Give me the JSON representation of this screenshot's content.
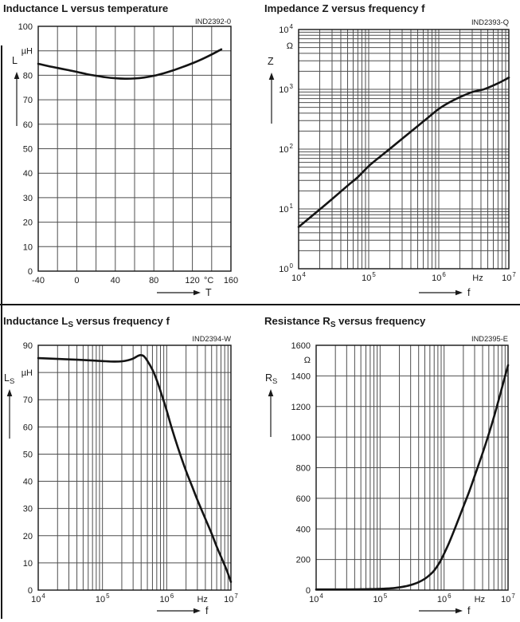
{
  "page": {
    "background": "#ffffff",
    "colors": {
      "text": "#1a1a1a",
      "title": "#10101a",
      "grid": "#4f4f4f",
      "plot_border": "#141414",
      "curve": "#141414"
    }
  },
  "chart_data": [
    {
      "key": "l-vs-t",
      "type": "line",
      "title_parts": [
        {
          "t": "Inductance L versus temperature"
        }
      ],
      "title_text": "Inductance L versus temperature",
      "code": "IND2392-0",
      "x_axis": {
        "scale": "linear",
        "min": -40,
        "max": 160,
        "grid_step": 20,
        "symbol": "T",
        "unit": "°C",
        "ticks": [
          {
            "v": -40,
            "label": "-40"
          },
          {
            "v": 0,
            "label": "0"
          },
          {
            "v": 40,
            "label": "40"
          },
          {
            "v": 80,
            "label": "80"
          },
          {
            "v": 120,
            "label": "120"
          },
          {
            "v": 137,
            "label": "°C"
          },
          {
            "v": 160,
            "label": "160"
          }
        ]
      },
      "y_axis": {
        "scale": "linear",
        "min": 0,
        "max": 100,
        "grid_step": 10,
        "quantity_parts": [
          {
            "t": "L"
          }
        ],
        "unit": "µH",
        "ticks": [
          {
            "v": 100,
            "label": "100"
          },
          {
            "v": 90,
            "label": "µH"
          },
          {
            "v": 80,
            "label": "80"
          },
          {
            "v": 70,
            "label": "70"
          },
          {
            "v": 60,
            "label": "60"
          },
          {
            "v": 50,
            "label": "50"
          },
          {
            "v": 40,
            "label": "40"
          },
          {
            "v": 30,
            "label": "30"
          },
          {
            "v": 20,
            "label": "20"
          },
          {
            "v": 10,
            "label": "10"
          },
          {
            "v": 0,
            "label": "0"
          }
        ]
      },
      "points": [
        [
          -40,
          84.7
        ],
        [
          -30,
          83.8
        ],
        [
          -20,
          83.0
        ],
        [
          -10,
          82.2
        ],
        [
          0,
          81.4
        ],
        [
          10,
          80.5
        ],
        [
          20,
          79.8
        ],
        [
          30,
          79.2
        ],
        [
          40,
          78.8
        ],
        [
          50,
          78.6
        ],
        [
          60,
          78.7
        ],
        [
          70,
          79.1
        ],
        [
          80,
          79.8
        ],
        [
          90,
          80.8
        ],
        [
          100,
          82.0
        ],
        [
          110,
          83.4
        ],
        [
          120,
          84.9
        ],
        [
          130,
          86.6
        ],
        [
          140,
          88.5
        ],
        [
          150,
          90.6
        ]
      ]
    },
    {
      "key": "z-vs-f",
      "type": "line",
      "title_parts": [
        {
          "t": "Impedance Z versus frequency f"
        }
      ],
      "title_text": "Impedance Z versus frequency f",
      "code": "IND2393-Q",
      "x_axis": {
        "scale": "log",
        "min": 10000,
        "max": 10000000,
        "symbol": "f",
        "unit": "Hz",
        "ticks": [
          {
            "v": 10000,
            "label": "10^4"
          },
          {
            "v": 100000,
            "label": "10^5"
          },
          {
            "v": 1000000,
            "label": "10^6"
          },
          {
            "v": 3600000,
            "label": "Hz"
          },
          {
            "v": 10000000,
            "label": "10^7"
          }
        ]
      },
      "y_axis": {
        "scale": "log",
        "min": 1,
        "max": 10000,
        "quantity_parts": [
          {
            "t": "Z"
          }
        ],
        "unit": "Ω",
        "ticks": [
          {
            "v": 10000,
            "label": "10^4"
          },
          {
            "v": 5400,
            "label": "Ω"
          },
          {
            "v": 1000,
            "label": "10^3"
          },
          {
            "v": 100,
            "label": "10^2"
          },
          {
            "v": 10,
            "label": "10^1"
          },
          {
            "v": 1,
            "label": "10^0"
          }
        ]
      },
      "points": [
        [
          10000,
          5
        ],
        [
          15000,
          7.4
        ],
        [
          20000,
          9.8
        ],
        [
          30000,
          14.6
        ],
        [
          50000,
          24.5
        ],
        [
          70000,
          34
        ],
        [
          100000,
          52
        ],
        [
          150000,
          77
        ],
        [
          200000,
          101
        ],
        [
          300000,
          149
        ],
        [
          500000,
          243
        ],
        [
          700000,
          335
        ],
        [
          1000000,
          470
        ],
        [
          1400000,
          600
        ],
        [
          2000000,
          740
        ],
        [
          3000000,
          900
        ],
        [
          4500000,
          1010
        ],
        [
          7000000,
          1260
        ],
        [
          10000000,
          1570
        ]
      ]
    },
    {
      "key": "ls-vs-f",
      "type": "line",
      "title_parts": [
        {
          "t": "Inductance L"
        },
        {
          "t": "S",
          "sub": true
        },
        {
          "t": " versus frequency f"
        }
      ],
      "title_text": "Inductance LS versus frequency f",
      "code": "IND2394-W",
      "x_axis": {
        "scale": "log",
        "min": 10000,
        "max": 10000000,
        "symbol": "f",
        "unit": "Hz",
        "ticks": [
          {
            "v": 10000,
            "label": "10^4"
          },
          {
            "v": 100000,
            "label": "10^5"
          },
          {
            "v": 1000000,
            "label": "10^6"
          },
          {
            "v": 3600000,
            "label": "Hz"
          },
          {
            "v": 10000000,
            "label": "10^7"
          }
        ]
      },
      "y_axis": {
        "scale": "linear",
        "min": 0,
        "max": 90,
        "grid_step": 10,
        "quantity_parts": [
          {
            "t": "L"
          },
          {
            "t": "S",
            "sub": true
          }
        ],
        "unit": "µH",
        "ticks": [
          {
            "v": 90,
            "label": "90"
          },
          {
            "v": 80,
            "label": "µH"
          },
          {
            "v": 70,
            "label": "70"
          },
          {
            "v": 60,
            "label": "60"
          },
          {
            "v": 50,
            "label": "50"
          },
          {
            "v": 40,
            "label": "40"
          },
          {
            "v": 30,
            "label": "30"
          },
          {
            "v": 20,
            "label": "20"
          },
          {
            "v": 10,
            "label": "10"
          },
          {
            "v": 0,
            "label": "0"
          }
        ]
      },
      "points": [
        [
          10000,
          85.3
        ],
        [
          20000,
          85.0
        ],
        [
          40000,
          84.7
        ],
        [
          70000,
          84.4
        ],
        [
          100000,
          84.2
        ],
        [
          150000,
          84.0
        ],
        [
          200000,
          84.1
        ],
        [
          250000,
          84.5
        ],
        [
          300000,
          85.1
        ],
        [
          350000,
          86.0
        ],
        [
          390000,
          86.4
        ],
        [
          440000,
          86.0
        ],
        [
          500000,
          84.3
        ],
        [
          600000,
          81.0
        ],
        [
          700000,
          77.2
        ],
        [
          850000,
          71.3
        ],
        [
          1000000,
          66.0
        ],
        [
          1200000,
          59.5
        ],
        [
          1500000,
          52.3
        ],
        [
          2000000,
          43.8
        ],
        [
          2500000,
          38.0
        ],
        [
          3000000,
          33.2
        ],
        [
          4000000,
          26.2
        ],
        [
          5000000,
          20.8
        ],
        [
          6000000,
          16.0
        ],
        [
          7000000,
          12.3
        ],
        [
          8500000,
          7.6
        ],
        [
          10000000,
          3.0
        ]
      ]
    },
    {
      "key": "rs-vs-f",
      "type": "line",
      "title_parts": [
        {
          "t": "Resistance R"
        },
        {
          "t": "S",
          "sub": true
        },
        {
          "t": " versus frequency"
        }
      ],
      "title_text": "Resistance RS versus frequency",
      "code": "IND2395-E",
      "x_axis": {
        "scale": "log",
        "min": 10000,
        "max": 10000000,
        "symbol": "f",
        "unit": "Hz",
        "ticks": [
          {
            "v": 10000,
            "label": "10^4"
          },
          {
            "v": 100000,
            "label": "10^5"
          },
          {
            "v": 1000000,
            "label": "10^6"
          },
          {
            "v": 3600000,
            "label": "Hz"
          },
          {
            "v": 10000000,
            "label": "10^7"
          }
        ]
      },
      "y_axis": {
        "scale": "linear",
        "min": 0,
        "max": 1600,
        "grid_step": 200,
        "quantity_parts": [
          {
            "t": "R"
          },
          {
            "t": "S",
            "sub": true
          }
        ],
        "unit": "Ω",
        "ticks": [
          {
            "v": 1600,
            "label": "1600"
          },
          {
            "v": 1505,
            "label": "Ω"
          },
          {
            "v": 1400,
            "label": "1400"
          },
          {
            "v": 1200,
            "label": "1200"
          },
          {
            "v": 1000,
            "label": "1000"
          },
          {
            "v": 800,
            "label": "800"
          },
          {
            "v": 600,
            "label": "600"
          },
          {
            "v": 400,
            "label": "400"
          },
          {
            "v": 200,
            "label": "200"
          },
          {
            "v": 0,
            "label": "0"
          }
        ]
      },
      "points": [
        [
          10000,
          4
        ],
        [
          30000,
          4.5
        ],
        [
          60000,
          6
        ],
        [
          100000,
          8
        ],
        [
          150000,
          12
        ],
        [
          200000,
          18
        ],
        [
          250000,
          25
        ],
        [
          300000,
          33
        ],
        [
          400000,
          52
        ],
        [
          500000,
          74
        ],
        [
          600000,
          100
        ],
        [
          700000,
          128
        ],
        [
          850000,
          180
        ],
        [
          1000000,
          238
        ],
        [
          1200000,
          310
        ],
        [
          1500000,
          410
        ],
        [
          2000000,
          545
        ],
        [
          2500000,
          650
        ],
        [
          3000000,
          745
        ],
        [
          4000000,
          895
        ],
        [
          5000000,
          1020
        ],
        [
          6000000,
          1130
        ],
        [
          7000000,
          1230
        ],
        [
          8000000,
          1320
        ],
        [
          9000000,
          1400
        ],
        [
          10000000,
          1470
        ]
      ]
    }
  ]
}
